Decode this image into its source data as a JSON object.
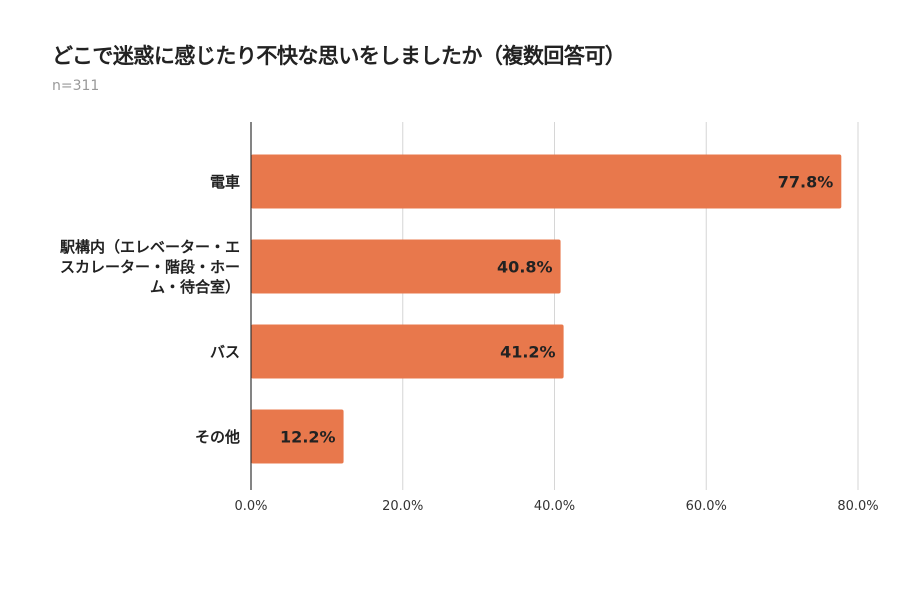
{
  "chart_data": {
    "type": "bar",
    "orientation": "horizontal",
    "title": "どこで迷惑に感じたり不快な思いをしましたか（複数回答可）",
    "subtitle": "n=311",
    "categories": [
      "電車",
      "駅構内（エレベーター・エスカレーター・階段・ホーム・待合室）",
      "バス",
      "その他"
    ],
    "values": [
      77.8,
      40.8,
      41.2,
      12.2
    ],
    "data_labels": [
      "77.8%",
      "40.8%",
      "41.2%",
      "12.2%"
    ],
    "xlim": [
      0,
      80
    ],
    "xticks": [
      0,
      20,
      40,
      60,
      80
    ],
    "xtick_labels": [
      "0.0%",
      "20.0%",
      "40.0%",
      "60.0%",
      "80.0%"
    ],
    "xlabel": "",
    "ylabel": "",
    "grid": "vertical",
    "legend": "none",
    "bar_color": "#e8784c"
  }
}
